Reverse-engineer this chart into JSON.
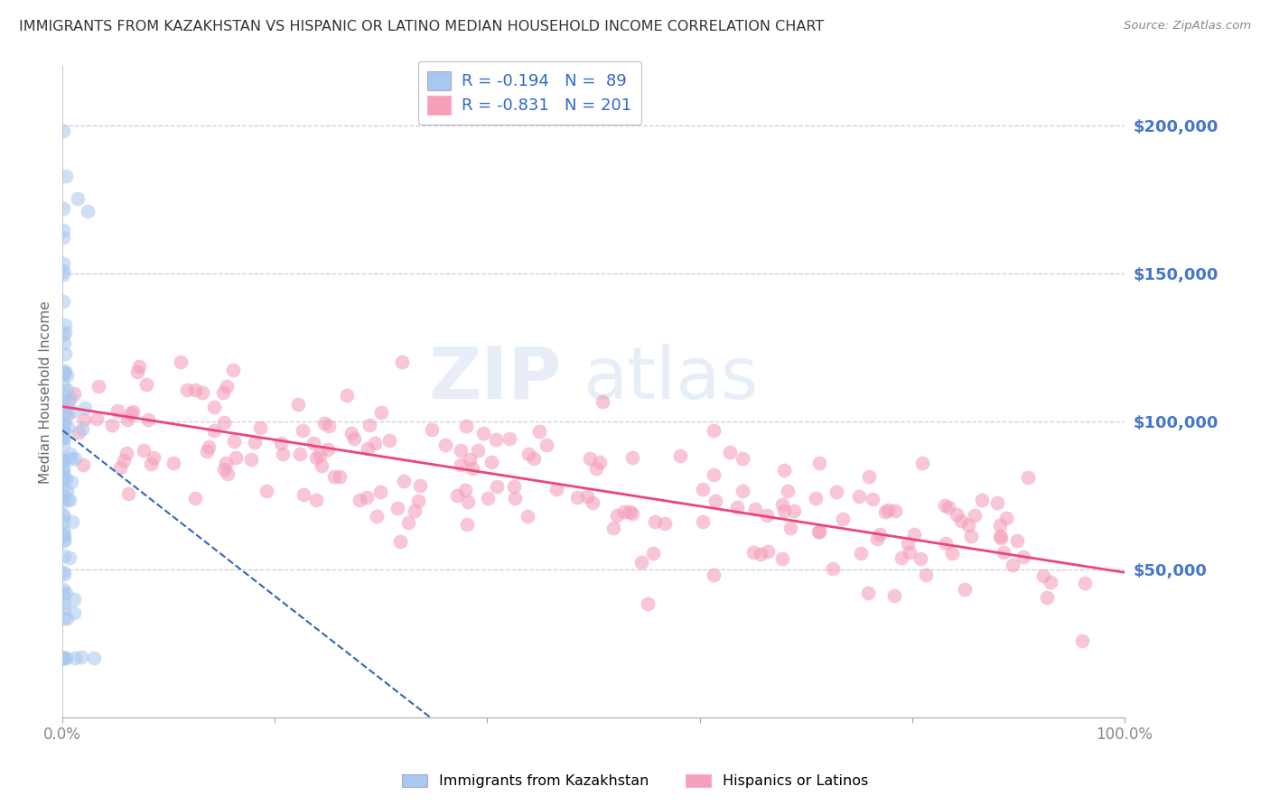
{
  "title": "IMMIGRANTS FROM KAZAKHSTAN VS HISPANIC OR LATINO MEDIAN HOUSEHOLD INCOME CORRELATION CHART",
  "source": "Source: ZipAtlas.com",
  "ylabel": "Median Household Income",
  "ytick_labels": [
    "$50,000",
    "$100,000",
    "$150,000",
    "$200,000"
  ],
  "ytick_values": [
    50000,
    100000,
    150000,
    200000
  ],
  "watermark_zip": "ZIP",
  "watermark_atlas": "atlas",
  "legend_label_blue": "Immigrants from Kazakhstan",
  "legend_label_pink": "Hispanics or Latinos",
  "blue_color": "#a8c8f0",
  "pink_color": "#f4a0b8",
  "trendline_blue_color": "#3366bb",
  "trendline_pink_color": "#ee4477",
  "legend_r_color": "#dd3366",
  "legend_n_color": "#3366cc",
  "xmin": 0.0,
  "xmax": 100.0,
  "ymin": 0,
  "ymax": 220000,
  "title_color": "#333333",
  "axis_label_color": "#4477cc",
  "grid_color": "#ccccdd",
  "background_color": "#ffffff"
}
